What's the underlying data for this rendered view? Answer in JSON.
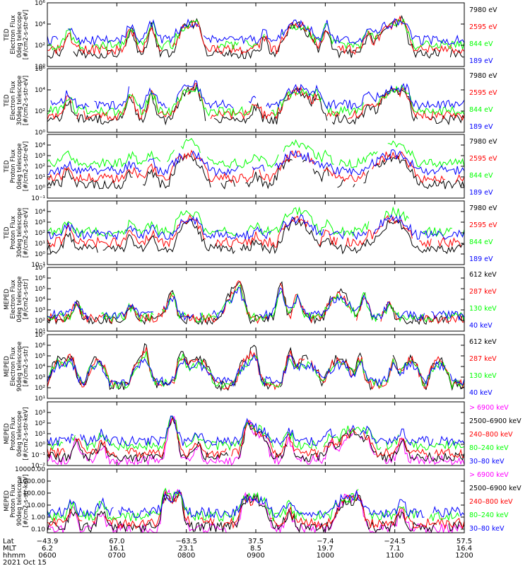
{
  "colors": {
    "black": "#000000",
    "red": "#ff0000",
    "green": "#00ff00",
    "blue": "#0000ff",
    "magenta": "#ff00ff"
  },
  "chart_data": [
    {
      "type": "line",
      "ylabel": [
        "TED",
        "Electron Flux",
        "0deg telescope",
        "[#/cm2-s-str-eV]"
      ],
      "yscale": "log",
      "ylim": [
        1,
        1000000
      ],
      "yticks": [
        {
          "v": 1,
          "t": "10⁰"
        },
        {
          "v": 100,
          "t": "10²"
        },
        {
          "v": 10000,
          "t": "10⁴"
        },
        {
          "v": 1000000,
          "t": "10⁶"
        }
      ],
      "series": [
        {
          "name": "7980 eV",
          "color": "#000000",
          "level": 1.2
        },
        {
          "name": "2595 eV",
          "color": "#ff0000",
          "level": 1.6
        },
        {
          "name": "844 eV",
          "color": "#00ff00",
          "level": 2.0
        },
        {
          "name": "189 eV",
          "color": "#0000ff",
          "level": 2.5
        }
      ],
      "peaks": [
        [
          0.05,
          1.8
        ],
        [
          0.2,
          2.2
        ],
        [
          0.25,
          2.6
        ],
        [
          0.36,
          0.8
        ],
        [
          0.52,
          1.2
        ],
        [
          0.67,
          2.3
        ],
        [
          0.77,
          1.8
        ],
        [
          0.85,
          1.0
        ]
      ],
      "domes": [
        [
          0.34,
          0.04
        ],
        [
          0.6,
          0.05
        ],
        [
          0.83,
          0.05
        ]
      ]
    },
    {
      "type": "line",
      "ylabel": [
        "TED",
        "Electron Flux",
        "30deg telescope",
        "[#/cm2-s-str-eV]"
      ],
      "yscale": "log",
      "ylim": [
        1,
        1000000
      ],
      "yticks": [
        {
          "v": 1,
          "t": "10⁰"
        },
        {
          "v": 100,
          "t": "10²"
        },
        {
          "v": 10000,
          "t": "10⁴"
        },
        {
          "v": 1000000,
          "t": "10⁶"
        }
      ],
      "series": [
        {
          "name": "7980 eV",
          "color": "#000000",
          "level": 1.2
        },
        {
          "name": "2595 eV",
          "color": "#ff0000",
          "level": 1.6
        },
        {
          "name": "844 eV",
          "color": "#00ff00",
          "level": 2.0
        },
        {
          "name": "189 eV",
          "color": "#0000ff",
          "level": 2.6
        }
      ],
      "peaks": [
        [
          0.05,
          1.8
        ],
        [
          0.2,
          2.3
        ],
        [
          0.25,
          2.2
        ],
        [
          0.36,
          1.0
        ],
        [
          0.5,
          1.3
        ],
        [
          0.65,
          2.0
        ],
        [
          0.77,
          1.6
        ],
        [
          0.86,
          1.0
        ]
      ],
      "domes": [
        [
          0.34,
          0.04
        ],
        [
          0.6,
          0.05
        ],
        [
          0.83,
          0.05
        ]
      ]
    },
    {
      "type": "line",
      "ylabel": [
        "TED",
        "Proton Flux",
        "0deg telescope",
        "[#/cm2-s-str-eV]"
      ],
      "yscale": "log",
      "ylim": [
        0.1,
        100000
      ],
      "yticks": [
        {
          "v": 0.1,
          "t": "10⁻¹"
        },
        {
          "v": 1,
          "t": "10⁰"
        },
        {
          "v": 10,
          "t": "10¹"
        },
        {
          "v": 100,
          "t": "10²"
        },
        {
          "v": 1000,
          "t": "10³"
        },
        {
          "v": 10000,
          "t": "10⁴"
        }
      ],
      "series": [
        {
          "name": "7980 eV",
          "color": "#000000",
          "level": 0.3
        },
        {
          "name": "2595 eV",
          "color": "#ff0000",
          "level": 0.9
        },
        {
          "name": "844 eV",
          "color": "#00ff00",
          "level": 2.3
        },
        {
          "name": "189 eV",
          "color": "#0000ff",
          "level": 1.6
        }
      ],
      "peaks": [
        [
          0.05,
          1.2
        ],
        [
          0.2,
          1.0
        ],
        [
          0.25,
          1.2
        ],
        [
          0.5,
          0.8
        ],
        [
          0.67,
          1.2
        ],
        [
          0.77,
          0.9
        ]
      ],
      "domes": [
        [
          0.34,
          0.05
        ],
        [
          0.6,
          0.06
        ],
        [
          0.83,
          0.06
        ]
      ]
    },
    {
      "type": "line",
      "ylabel": [
        "TED",
        "Proton Flux",
        "30deg telescope",
        "[#/cm2-s-str-eV]"
      ],
      "yscale": "log",
      "ylim": [
        0.1,
        100000
      ],
      "yticks": [
        {
          "v": 0.1,
          "t": "10⁻¹"
        },
        {
          "v": 1,
          "t": "10⁰"
        },
        {
          "v": 10,
          "t": "10¹"
        },
        {
          "v": 100,
          "t": "10²"
        },
        {
          "v": 1000,
          "t": "10³"
        },
        {
          "v": 10000,
          "t": "10⁴"
        }
      ],
      "series": [
        {
          "name": "7980 eV",
          "color": "#000000",
          "level": 0.5
        },
        {
          "name": "2595 eV",
          "color": "#ff0000",
          "level": 1.1
        },
        {
          "name": "844 eV",
          "color": "#00ff00",
          "level": 2.1
        },
        {
          "name": "189 eV",
          "color": "#0000ff",
          "level": 1.8
        }
      ],
      "peaks": [
        [
          0.05,
          1.3
        ],
        [
          0.2,
          1.1
        ],
        [
          0.25,
          1.0
        ],
        [
          0.5,
          0.7
        ],
        [
          0.67,
          1.0
        ],
        [
          0.77,
          0.9
        ]
      ],
      "domes": [
        [
          0.34,
          0.04
        ],
        [
          0.6,
          0.05
        ],
        [
          0.83,
          0.05
        ]
      ]
    },
    {
      "type": "line",
      "ylabel": [
        "MEPED",
        "Electron Flux",
        "0deg telescope",
        "[#/cm2-s-str]"
      ],
      "yscale": "log",
      "ylim": [
        10,
        10000000
      ],
      "yticks": [
        {
          "v": 10,
          "t": "10¹"
        },
        {
          "v": 100,
          "t": "10²"
        },
        {
          "v": 1000,
          "t": "10³"
        },
        {
          "v": 10000,
          "t": "10⁴"
        },
        {
          "v": 100000,
          "t": "10⁵"
        },
        {
          "v": 1000000,
          "t": "10⁶"
        },
        {
          "v": 10000000,
          "t": "10⁷"
        }
      ],
      "series": [
        {
          "name": "612 keV",
          "color": "#000000",
          "level": 2.1
        },
        {
          "name": "287 keV",
          "color": "#ff0000",
          "level": 2.2
        },
        {
          "name": "130 keV",
          "color": "#00ff00",
          "level": 2.3
        },
        {
          "name": "40 keV",
          "color": "#0000ff",
          "level": 2.5
        }
      ],
      "peaks": [
        [
          0.07,
          1.5
        ],
        [
          0.2,
          1.3
        ],
        [
          0.28,
          0.8
        ],
        [
          0.46,
          1.3
        ],
        [
          0.56,
          3.5
        ],
        [
          0.6,
          2.5
        ],
        [
          0.76,
          2.6
        ],
        [
          0.82,
          1.5
        ]
      ],
      "domes": [
        [
          0.3,
          0.015
        ],
        [
          0.45,
          0.035
        ],
        [
          0.7,
          0.04
        ]
      ]
    },
    {
      "type": "line",
      "ylabel": [
        "MEPED",
        "Electron Flux",
        "90deg telescope",
        "[#/cm2-s-str]"
      ],
      "yscale": "log",
      "ylim": [
        10,
        10000000
      ],
      "yticks": [
        {
          "v": 10,
          "t": "10¹"
        },
        {
          "v": 100,
          "t": "10²"
        },
        {
          "v": 1000,
          "t": "10³"
        },
        {
          "v": 10000,
          "t": "10⁴"
        },
        {
          "v": 100000,
          "t": "10⁵"
        },
        {
          "v": 1000000,
          "t": "10⁶"
        },
        {
          "v": 10000000,
          "t": "10⁷"
        }
      ],
      "series": [
        {
          "name": "612 keV",
          "color": "#000000",
          "level": 2.2
        },
        {
          "name": "287 keV",
          "color": "#ff0000",
          "level": 2.3
        },
        {
          "name": "130 keV",
          "color": "#00ff00",
          "level": 2.4
        },
        {
          "name": "40 keV",
          "color": "#0000ff",
          "level": 2.6
        }
      ],
      "peaks": [
        [
          0.06,
          2.5
        ],
        [
          0.24,
          2.3
        ],
        [
          0.32,
          3.0
        ],
        [
          0.5,
          2.0
        ],
        [
          0.58,
          3.2
        ],
        [
          0.75,
          2.8
        ],
        [
          0.83,
          2.6
        ]
      ],
      "domes": [
        [
          0.03,
          0.03
        ],
        [
          0.12,
          0.03
        ],
        [
          0.22,
          0.025
        ],
        [
          0.36,
          0.04
        ],
        [
          0.48,
          0.03
        ],
        [
          0.62,
          0.04
        ],
        [
          0.7,
          0.04
        ],
        [
          0.87,
          0.03
        ],
        [
          0.94,
          0.03
        ]
      ]
    },
    {
      "type": "line",
      "ylabel": [
        "MEPED",
        "Proton Flux",
        "0deg telescope",
        "[#/cm2-s-str-keV]"
      ],
      "yscale": "log",
      "ylim": [
        0.01,
        10000
      ],
      "yticks": [
        {
          "v": 0.01,
          "t": "10⁻²"
        },
        {
          "v": 0.1,
          "t": "10⁻¹"
        },
        {
          "v": 1,
          "t": "10⁰"
        },
        {
          "v": 10,
          "t": "10¹"
        },
        {
          "v": 100,
          "t": "10²"
        },
        {
          "v": 1000,
          "t": "10³"
        }
      ],
      "series": [
        {
          "name": "> 6900 keV",
          "color": "#ff00ff",
          "level": -1.5
        },
        {
          "name": "2500–6900 keV",
          "color": "#000000",
          "level": -1.2
        },
        {
          "name": "240–800 keV",
          "color": "#ff0000",
          "level": -0.8
        },
        {
          "name": "80–240 keV",
          "color": "#00ff00",
          "level": -0.1
        },
        {
          "name": "30–80 keV",
          "color": "#0000ff",
          "level": 0.3
        }
      ],
      "peaks": [
        [
          0.07,
          1.8
        ],
        [
          0.13,
          1.4
        ],
        [
          0.3,
          1.7
        ],
        [
          0.36,
          1.4
        ],
        [
          0.48,
          1.5
        ],
        [
          0.58,
          1.8
        ],
        [
          0.68,
          1.5
        ],
        [
          0.77,
          1.9
        ],
        [
          0.85,
          1.7
        ]
      ],
      "domes": [
        [
          0.3,
          0.02
        ],
        [
          0.5,
          0.04
        ],
        [
          0.73,
          0.04
        ]
      ]
    },
    {
      "type": "line",
      "ylabel": [
        "MEPED",
        "Proton Flux",
        "90deg telescope",
        "[#/cm2-s-str-keV]"
      ],
      "yscale": "log",
      "ylim": [
        0.05,
        10000
      ],
      "yticks": [
        {
          "v": 0.1,
          "t": "0.10"
        },
        {
          "v": 1,
          "t": "1.00"
        },
        {
          "v": 10,
          "t": "10.00"
        },
        {
          "v": 100,
          "t": "100.00"
        },
        {
          "v": 1000,
          "t": "1000.00"
        },
        {
          "v": 10000,
          "t": "10000.00"
        }
      ],
      "series": [
        {
          "name": "> 6900 keV",
          "color": "#ff00ff",
          "level": -1.0
        },
        {
          "name": "2500–6900 keV",
          "color": "#000000",
          "level": -0.8
        },
        {
          "name": "240–800 keV",
          "color": "#ff0000",
          "level": -0.5
        },
        {
          "name": "80–240 keV",
          "color": "#00ff00",
          "level": 0.1
        },
        {
          "name": "30–80 keV",
          "color": "#0000ff",
          "level": 0.4
        }
      ],
      "peaks": [
        [
          0.06,
          1.6
        ],
        [
          0.13,
          1.5
        ],
        [
          0.28,
          1.3
        ],
        [
          0.32,
          1.5
        ],
        [
          0.47,
          1.3
        ],
        [
          0.58,
          1.4
        ],
        [
          0.75,
          1.6
        ],
        [
          0.85,
          1.4
        ]
      ],
      "domes": [
        [
          0.3,
          0.03
        ],
        [
          0.5,
          0.04
        ],
        [
          0.72,
          0.04
        ]
      ]
    }
  ],
  "x_axis": {
    "row_labels": [
      "Lat",
      "MLT",
      "hhmm"
    ],
    "columns": [
      {
        "lat": "−43.9",
        "mlt": "6.2",
        "hhmm": "0600"
      },
      {
        "lat": "67.0",
        "mlt": "16.1",
        "hhmm": "0700"
      },
      {
        "lat": "−63.5",
        "mlt": "23.1",
        "hhmm": "0800"
      },
      {
        "lat": "37.5",
        "mlt": "8.5",
        "hhmm": "0900"
      },
      {
        "lat": "−7.4",
        "mlt": "19.7",
        "hhmm": "1000"
      },
      {
        "lat": "−24.5",
        "mlt": "7.1",
        "hhmm": "1100"
      },
      {
        "lat": "57.5",
        "mlt": "16.4",
        "hhmm": "1200"
      }
    ],
    "date": "2021 Oct 15"
  }
}
